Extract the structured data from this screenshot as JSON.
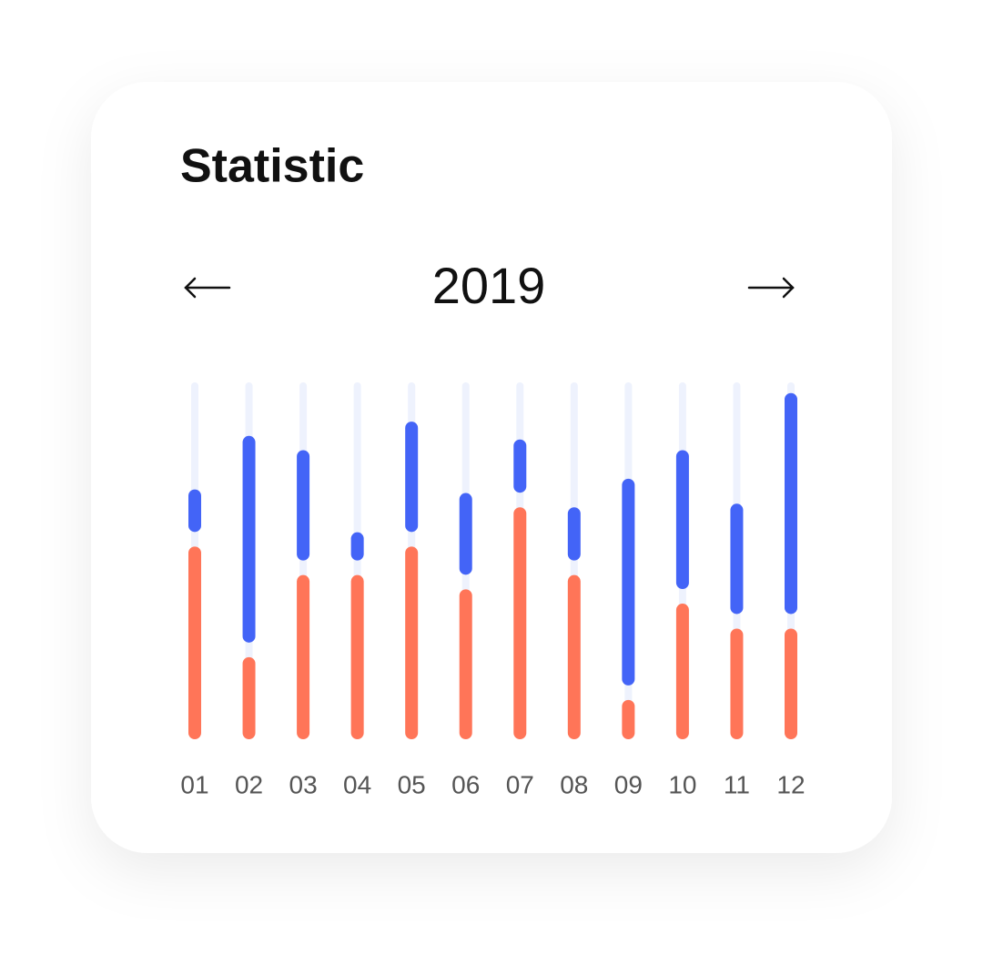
{
  "chart_data": {
    "type": "stacked-bar",
    "title": "Statistic",
    "subtitle": "2019",
    "categories": [
      "01",
      "02",
      "03",
      "04",
      "05",
      "06",
      "07",
      "08",
      "09",
      "10",
      "11",
      "12"
    ],
    "series": [
      {
        "color": "#ff7558",
        "values": [
          54,
          23,
          46,
          46,
          54,
          42,
          65,
          46,
          11,
          38,
          31,
          31
        ]
      },
      {
        "color": "#4364f7",
        "values": [
          16,
          62,
          35,
          12,
          35,
          27,
          19,
          19,
          62,
          43,
          35,
          66
        ]
      }
    ],
    "ylim": [
      0,
      100
    ],
    "track_color": "#eef2fd"
  }
}
